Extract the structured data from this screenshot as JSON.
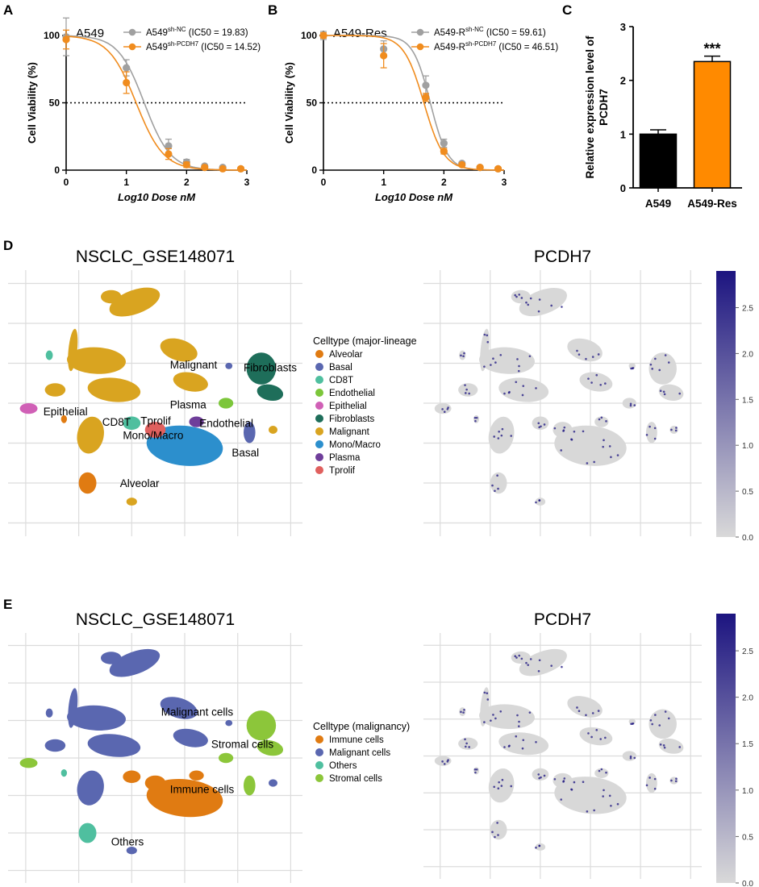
{
  "colors": {
    "gray": "#a0a0a0",
    "orange": "#f08c1e",
    "bar_black": "#000000",
    "bar_orange": "#ff8a00",
    "umap_gray": "#d8d8d8",
    "grid": "#dcdcdc",
    "expr_low": "#d9d9d9",
    "expr_high": "#1c1480",
    "ct": {
      "Alveolar": "#e07b12",
      "Basal": "#5a67b0",
      "CD8T": "#4fbf9f",
      "Endothelial": "#7cc63a",
      "Epithelial": "#d060b6",
      "Fibroblasts": "#1e6e5a",
      "Malignant": "#d9a420",
      "Mono/Macro": "#2c8fcd",
      "Plasma": "#6f3e9a",
      "Tprolif": "#e0605e"
    },
    "mal": {
      "Immune cells": "#e07b12",
      "Malignant cells": "#5a67b0",
      "Others": "#4fbf9f",
      "Stromal cells": "#8cc63a"
    }
  },
  "panels": {
    "A": "A",
    "B": "B",
    "C": "C",
    "D": "D",
    "E": "E"
  },
  "chart_data": [
    {
      "id": "A",
      "type": "line",
      "inner_title": "A549",
      "xlabel": "Log10 Dose nM",
      "ylabel": "Cell Viability (%)",
      "xlim": [
        0,
        3
      ],
      "ylim": [
        0,
        100
      ],
      "xticks": [
        "0",
        "1",
        "2",
        "3"
      ],
      "yticks": [
        "0",
        "50",
        "100"
      ],
      "reference_line": 50,
      "series": [
        {
          "name": "A549",
          "sup": "sh-NC",
          "ic50_text": "(IC50 = 19.83)",
          "color": "gray",
          "x": [
            0,
            1,
            1.7,
            2,
            2.3,
            2.6,
            2.9
          ],
          "y": [
            99,
            76,
            18,
            6,
            3,
            2,
            1
          ],
          "err": [
            14,
            6,
            5,
            2,
            1,
            1,
            1
          ],
          "logIC50": 1.297,
          "hill": 2.0
        },
        {
          "name": "A549",
          "sup": "sh-PCDH7",
          "ic50_text": "(IC50 = 14.52)",
          "color": "orange",
          "x": [
            0,
            1,
            1.7,
            2,
            2.3,
            2.6,
            2.9
          ],
          "y": [
            97,
            65,
            12,
            4,
            2,
            1,
            1
          ],
          "err": [
            7,
            8,
            4,
            2,
            1,
            1,
            1
          ],
          "logIC50": 1.162,
          "hill": 1.9
        }
      ]
    },
    {
      "id": "B",
      "type": "line",
      "inner_title": "A549-Res",
      "xlabel": "Log10 Dose nM",
      "ylabel": "Cell Viability (%)",
      "xlim": [
        0,
        3
      ],
      "ylim": [
        0,
        100
      ],
      "xticks": [
        "0",
        "1",
        "2",
        "3"
      ],
      "yticks": [
        "0",
        "50",
        "100"
      ],
      "reference_line": 50,
      "series": [
        {
          "name": "A549-R",
          "sup": "sh-NC",
          "ic50_text": "(IC50 = 59.61)",
          "color": "gray",
          "x": [
            0,
            1,
            1.7,
            2,
            2.3,
            2.6,
            2.9
          ],
          "y": [
            100,
            90,
            63,
            20,
            5,
            2,
            1
          ],
          "err": [
            3,
            6,
            7,
            3,
            1,
            1,
            1
          ],
          "logIC50": 1.775,
          "hill": 3.0
        },
        {
          "name": "A549-R",
          "sup": "sh-PCDH7",
          "ic50_text": "(IC50 = 46.51)",
          "color": "orange",
          "x": [
            0,
            1,
            1.7,
            2,
            2.3,
            2.6,
            2.9
          ],
          "y": [
            100,
            85,
            54,
            14,
            4,
            2,
            1
          ],
          "err": [
            2,
            9,
            3,
            2,
            1,
            1,
            1
          ],
          "logIC50": 1.668,
          "hill": 2.6
        }
      ]
    },
    {
      "id": "C",
      "type": "bar",
      "ylabel": "Relative expression level of PCDH7",
      "ylabel_lines": [
        "Relative expression level of",
        "PCDH7"
      ],
      "categories": [
        "A549",
        "A549-Res"
      ],
      "values": [
        1.0,
        2.35
      ],
      "errors": [
        0.08,
        0.1
      ],
      "bar_colors": [
        "bar_black",
        "bar_orange"
      ],
      "ylim": [
        0,
        3
      ],
      "yticks": [
        "0",
        "1",
        "2",
        "3"
      ],
      "significance": "***"
    },
    {
      "id": "D-left",
      "type": "scatter",
      "title": "NSCLC_GSE148071",
      "legend_title": "Celltype (major-lineage",
      "legend": [
        "Alveolar",
        "Basal",
        "CD8T",
        "Endothelial",
        "Epithelial",
        "Fibroblasts",
        "Malignant",
        "Mono/Macro",
        "Plasma",
        "Tprolif"
      ],
      "cluster_labels": [
        "Malignant",
        "Fibroblasts",
        "Epithelial",
        "Plasma",
        "CD8T",
        "Tprolif",
        "Endothelial",
        "Mono/Macro",
        "Basal",
        "Alveolar"
      ]
    },
    {
      "id": "D-right",
      "type": "scatter",
      "title": "PCDH7",
      "colorbar_ticks": [
        "0.0",
        "0.5",
        "1.0",
        "1.5",
        "2.0",
        "2.5"
      ],
      "colorbar_range": [
        0,
        2.9
      ]
    },
    {
      "id": "E-left",
      "type": "scatter",
      "title": "NSCLC_GSE148071",
      "legend_title": "Celltype (malignancy)",
      "legend": [
        "Immune cells",
        "Malignant cells",
        "Others",
        "Stromal cells"
      ],
      "cluster_labels": [
        "Malignant cells",
        "Stromal cells",
        "Immune cells",
        "Others"
      ]
    },
    {
      "id": "E-right",
      "type": "scatter",
      "title": "PCDH7",
      "colorbar_ticks": [
        "0.0",
        "0.5",
        "1.0",
        "1.5",
        "2.0",
        "2.5"
      ],
      "colorbar_range": [
        0,
        2.9
      ]
    }
  ]
}
